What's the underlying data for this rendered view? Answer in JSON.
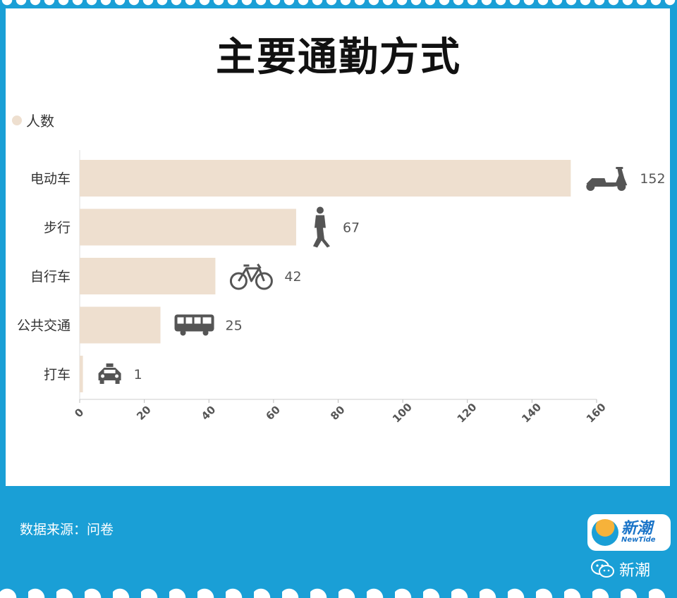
{
  "title": "主要通勤方式",
  "legend": {
    "label": "人数",
    "color": "#eedfcf"
  },
  "source_label": "数据来源：问卷",
  "logo": {
    "cn": "新潮",
    "en": "NewTide"
  },
  "wechat_label": "新潮",
  "colors": {
    "bar": "#eedfcf",
    "frame": "#1a9fd6",
    "icon": "#555555",
    "axis_text": "#555555"
  },
  "chart_data": {
    "type": "bar",
    "orientation": "horizontal",
    "title": "主要通勤方式",
    "categories": [
      "电动车",
      "步行",
      "自行车",
      "公共交通",
      "打车"
    ],
    "series": [
      {
        "name": "人数",
        "values": [
          152,
          67,
          42,
          25,
          1
        ]
      }
    ],
    "icons": [
      "scooter-icon",
      "walking-person-icon",
      "bicycle-icon",
      "bus-icon",
      "taxi-icon"
    ],
    "xlim": [
      0,
      160
    ],
    "xticks": [
      0,
      20,
      40,
      60,
      80,
      100,
      120,
      140,
      160
    ],
    "grid": false,
    "legend_position": "top-left"
  }
}
